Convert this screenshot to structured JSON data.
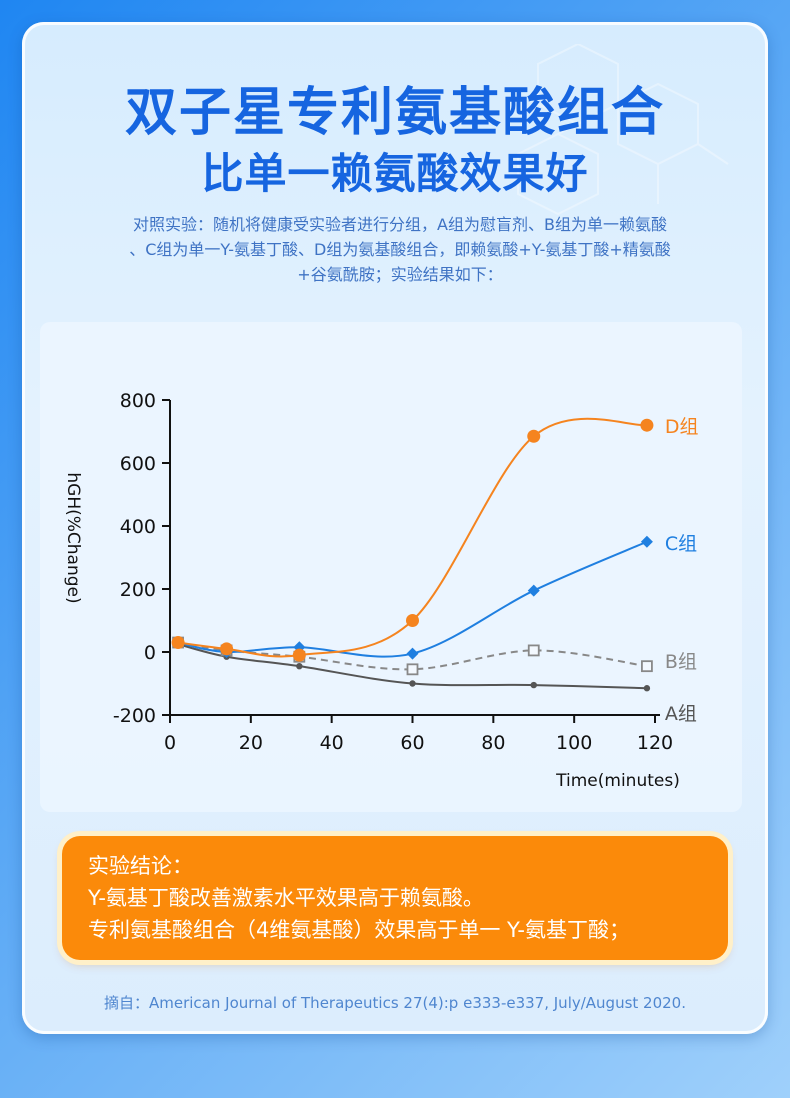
{
  "header": {
    "title_line1": "双子星专利氨基酸组合",
    "title_line2": "比单一赖氨酸效果好",
    "description": [
      "对照实验：随机将健康受实验者进行分组，A组为慰盲剂、B组为单一赖氨酸",
      "、C组为单一Y-氨基丁酸、D组为氨基酸组合，即赖氨酸+Y-氨基丁酸+精氨酸",
      "+谷氨酰胺；实验结果如下："
    ]
  },
  "chart_data": {
    "type": "line",
    "xlabel": "Time(minutes)",
    "ylabel": "hGH(%Change)",
    "xlim": [
      0,
      120
    ],
    "ylim": [
      -200,
      800
    ],
    "xticks": [
      0,
      20,
      40,
      60,
      80,
      100,
      120
    ],
    "yticks": [
      -200,
      0,
      200,
      400,
      600,
      800
    ],
    "grid": false,
    "series": [
      {
        "name": "D组",
        "color": "#f5841f",
        "marker": "circle",
        "dashed": false,
        "x": [
          2,
          14,
          32,
          60,
          90,
          118
        ],
        "y": [
          30,
          10,
          -10,
          100,
          685,
          720
        ]
      },
      {
        "name": "C组",
        "color": "#1f7fe0",
        "marker": "diamond",
        "dashed": false,
        "x": [
          2,
          14,
          32,
          60,
          90,
          118
        ],
        "y": [
          30,
          0,
          15,
          -5,
          195,
          350
        ]
      },
      {
        "name": "B组",
        "color": "#888888",
        "marker": "square-open",
        "dashed": true,
        "x": [
          2,
          14,
          32,
          60,
          90,
          118
        ],
        "y": [
          30,
          5,
          -15,
          -55,
          5,
          -45
        ]
      },
      {
        "name": "A组",
        "color": "#555555",
        "marker": "dot",
        "dashed": false,
        "x": [
          2,
          14,
          32,
          60,
          90,
          118
        ],
        "y": [
          25,
          -15,
          -45,
          -100,
          -105,
          -115
        ]
      }
    ]
  },
  "conclusion": {
    "lines": [
      "实验结论：",
      "Y-氨基丁酸改善激素水平效果高于赖氨酸。",
      "专利氨基酸组合（4维氨基酸）效果高于单一 Y-氨基丁酸；"
    ]
  },
  "source": "摘自：American Journal of Therapeutics 27(4):p e333-e337, July/August 2020."
}
